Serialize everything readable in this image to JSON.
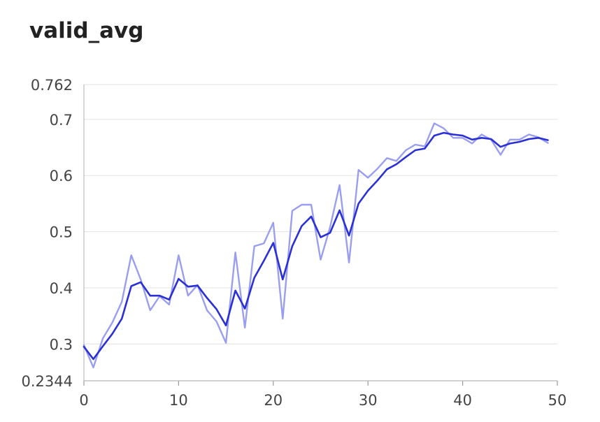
{
  "page": {
    "title": "valid_avg"
  },
  "chart_data": {
    "type": "line",
    "title": "valid_avg",
    "xlabel": "",
    "ylabel": "",
    "xlim": [
      0,
      50
    ],
    "ylim": [
      0.2344,
      0.762
    ],
    "xticks": [
      "0",
      "10",
      "20",
      "30",
      "40",
      "50"
    ],
    "yticks": [
      "0.2344",
      "0.3",
      "0.4",
      "0.5",
      "0.6",
      "0.7",
      "0.762"
    ],
    "grid": true,
    "colors": {
      "raw": "#9a9ef0",
      "smoothed": "#2b30d6"
    },
    "series": [
      {
        "role": "raw",
        "x": [
          0,
          1,
          2,
          3,
          4,
          5,
          6,
          7,
          8,
          9,
          10,
          11,
          12,
          13,
          14,
          15,
          16,
          17,
          18,
          19,
          20,
          21,
          22,
          23,
          24,
          25,
          26,
          27,
          28,
          29,
          30,
          31,
          32,
          33,
          34,
          35,
          36,
          37,
          38,
          39,
          40,
          41,
          42,
          43,
          44,
          45,
          46,
          47,
          48,
          49
        ],
        "y": [
          0.298,
          0.258,
          0.31,
          0.338,
          0.375,
          0.458,
          0.415,
          0.36,
          0.385,
          0.37,
          0.458,
          0.386,
          0.405,
          0.36,
          0.34,
          0.302,
          0.463,
          0.329,
          0.474,
          0.479,
          0.516,
          0.345,
          0.537,
          0.548,
          0.548,
          0.45,
          0.508,
          0.583,
          0.445,
          0.61,
          0.596,
          0.612,
          0.631,
          0.626,
          0.645,
          0.655,
          0.652,
          0.693,
          0.684,
          0.667,
          0.667,
          0.657,
          0.673,
          0.664,
          0.637,
          0.664,
          0.664,
          0.673,
          0.668,
          0.658
        ]
      },
      {
        "role": "smoothed",
        "x": [
          0,
          1,
          2,
          3,
          4,
          5,
          6,
          7,
          8,
          9,
          10,
          11,
          12,
          13,
          14,
          15,
          16,
          17,
          18,
          19,
          20,
          21,
          22,
          23,
          24,
          25,
          26,
          27,
          28,
          29,
          30,
          31,
          32,
          33,
          34,
          35,
          36,
          37,
          38,
          39,
          40,
          41,
          42,
          43,
          44,
          45,
          46,
          47,
          48,
          49
        ],
        "y": [
          0.295,
          0.273,
          0.296,
          0.318,
          0.345,
          0.403,
          0.41,
          0.386,
          0.386,
          0.379,
          0.416,
          0.402,
          0.404,
          0.382,
          0.362,
          0.333,
          0.395,
          0.363,
          0.418,
          0.448,
          0.48,
          0.415,
          0.474,
          0.51,
          0.527,
          0.49,
          0.498,
          0.538,
          0.493,
          0.55,
          0.573,
          0.591,
          0.611,
          0.62,
          0.633,
          0.645,
          0.648,
          0.671,
          0.676,
          0.673,
          0.671,
          0.664,
          0.667,
          0.665,
          0.651,
          0.657,
          0.66,
          0.665,
          0.667,
          0.663
        ]
      }
    ]
  }
}
